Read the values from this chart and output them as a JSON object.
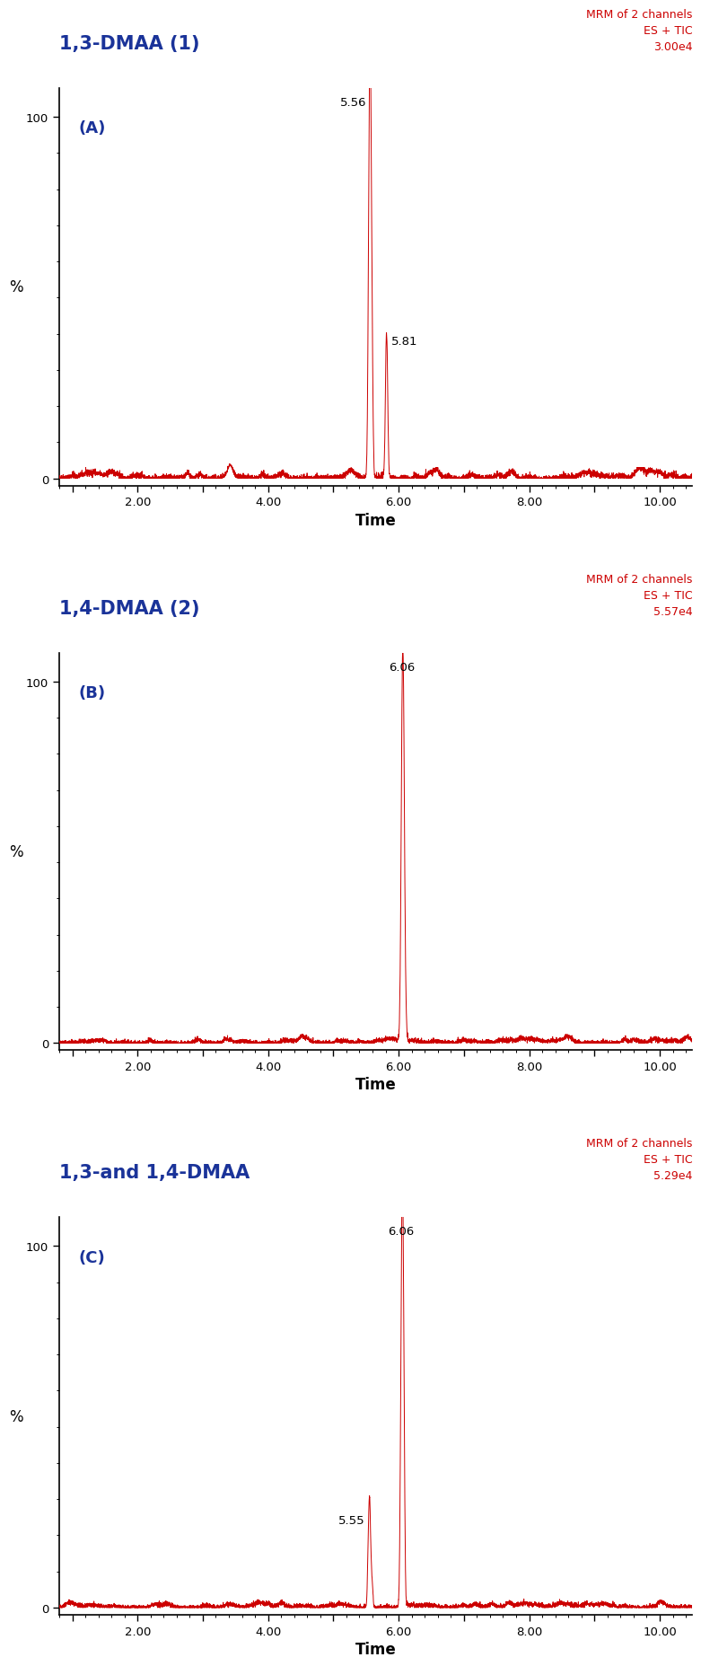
{
  "panels": [
    {
      "title": "1,3-DMAA (1)",
      "panel_label": "(A)",
      "mrm_text": "MRM of 2 channels\nES + TIC\n3.00e4",
      "noise_amp": 1.5
    },
    {
      "title": "1,4-DMAA (2)",
      "panel_label": "(B)",
      "mrm_text": "MRM of 2 channels\nES + TIC\n5.57e4",
      "noise_amp": 1.2
    },
    {
      "title": "1,3-and 1,4-DMAA",
      "panel_label": "(C)",
      "mrm_text": "MRM of 2 channels\nES + TIC\n5.29e4",
      "noise_amp": 1.2
    }
  ],
  "xlim": [
    0.8,
    10.5
  ],
  "ylim": [
    -2,
    108
  ],
  "xlabel": "Time",
  "ylabel": "%",
  "line_color": "#cc0000",
  "title_color": "#1a3399",
  "mrm_color": "#cc0000",
  "panel_label_color": "#1a3399",
  "annotation_color": "#000000",
  "bg_color": "#ffffff"
}
